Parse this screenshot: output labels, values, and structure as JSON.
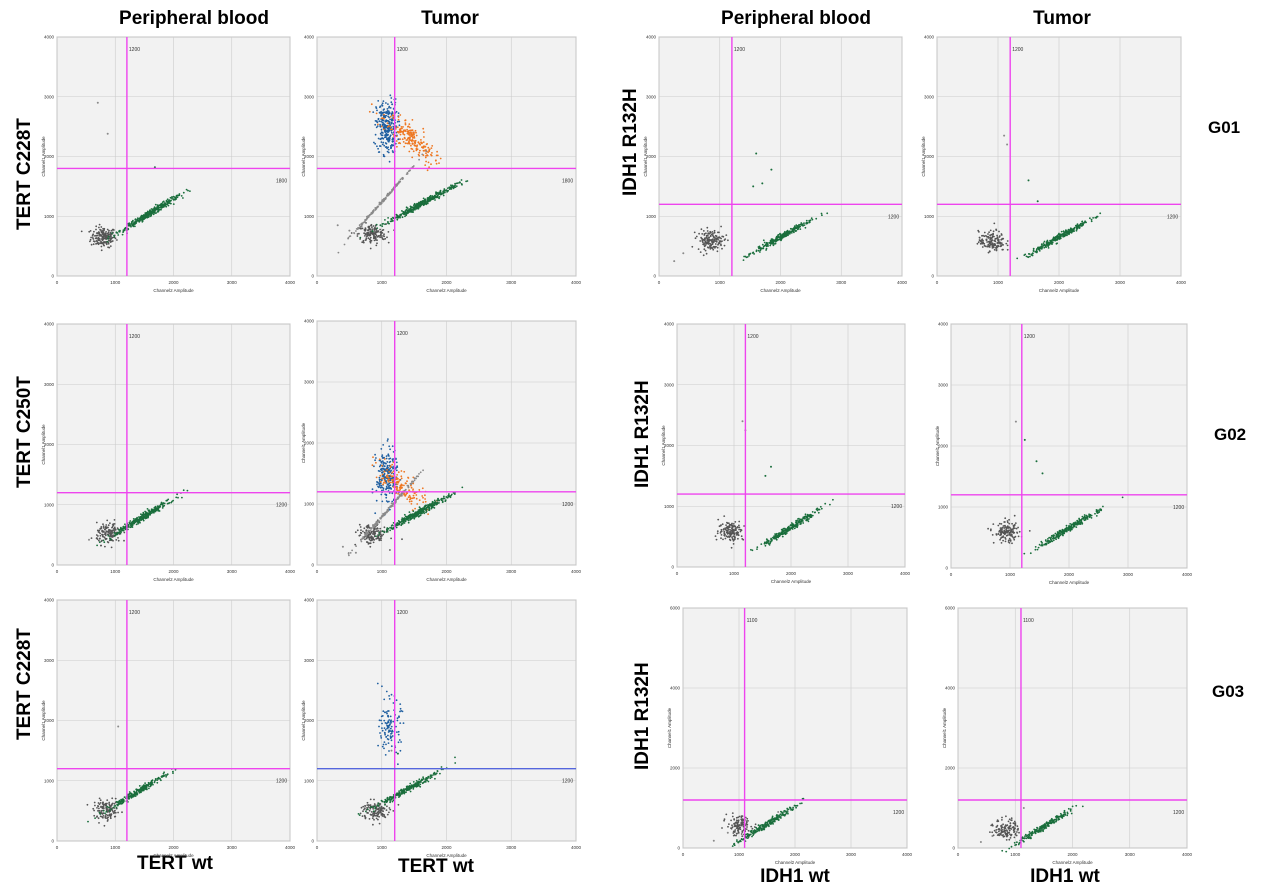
{
  "column_headers": [
    "Peripheral blood",
    "Tumor",
    "Peripheral blood",
    "Tumor"
  ],
  "row_labels_left": [
    "TERT C228T",
    "TERT C250T",
    "TERT C228T"
  ],
  "row_labels_right": [
    "IDH1 R132H",
    "IDH1 R132H",
    "IDH1 R132H"
  ],
  "bottom_labels": [
    "TERT wt",
    "TERT wt",
    "IDH1 wt",
    "IDH1 wt"
  ],
  "group_labels": [
    "G01",
    "G02",
    "G03"
  ],
  "colors": {
    "threshold": "#ee44ee",
    "threshold_alt": "#5566dd",
    "grid": "#cccccc",
    "plot_bg": "#f2f2f2",
    "neg": "#555555",
    "wt": "#1a6e3c",
    "mut": "#1f5fa0",
    "double": "#ee7722",
    "scatter_gray": "#8a8a8a"
  },
  "chart_data": [
    {
      "type": "scatter",
      "group": "G01",
      "sample": "Peripheral blood",
      "assay": "TERT C228T",
      "xlabel": "Channel2 Amplitude",
      "ylabel": "Channel1 Amplitude",
      "xlim": [
        0,
        4000
      ],
      "ylim": [
        0,
        4000
      ],
      "xticks": [
        0,
        1000,
        2000,
        3000,
        4000
      ],
      "yticks": [
        0,
        1000,
        2000,
        3000,
        4000
      ],
      "x_threshold": 1200,
      "y_threshold": 1800,
      "x_threshold_label": "1200",
      "y_threshold_label": "1800",
      "clusters": [
        {
          "name": "negative",
          "color": "neg",
          "center": [
            800,
            650
          ],
          "n": 180
        },
        {
          "name": "wt",
          "color": "wt",
          "center": [
            1600,
            1050
          ],
          "n": 350
        }
      ],
      "outliers": [
        [
          700,
          2900
        ],
        [
          870,
          2380
        ],
        [
          1680,
          1820
        ]
      ],
      "threshold_color": "threshold"
    },
    {
      "type": "scatter",
      "group": "G01",
      "sample": "Tumor",
      "assay": "TERT C228T",
      "xlabel": "Channel2 Amplitude",
      "ylabel": "Channel1 Amplitude",
      "xlim": [
        0,
        4000
      ],
      "ylim": [
        0,
        4000
      ],
      "xticks": [
        0,
        1000,
        2000,
        3000,
        4000
      ],
      "yticks": [
        0,
        1000,
        2000,
        3000,
        4000
      ],
      "x_threshold": 1200,
      "y_threshold": 1800,
      "x_threshold_label": "1200",
      "y_threshold_label": "1800",
      "clusters": [
        {
          "name": "negative",
          "color": "neg",
          "center": [
            850,
            700
          ],
          "n": 160
        },
        {
          "name": "mutant",
          "color": "mut",
          "center": [
            1080,
            2500
          ],
          "n": 280
        },
        {
          "name": "double",
          "color": "double",
          "center": [
            1450,
            2300
          ],
          "n": 220
        },
        {
          "name": "wt",
          "color": "wt",
          "center": [
            1600,
            1200
          ],
          "n": 380
        },
        {
          "name": "rain",
          "color": "scatter_gray",
          "center": [
            1050,
            1300
          ],
          "n": 180
        }
      ],
      "outliers": [
        [
          320,
          850
        ],
        [
          500,
          760
        ]
      ],
      "threshold_color": "threshold"
    },
    {
      "type": "scatter",
      "group": "G01",
      "sample": "Peripheral blood",
      "assay": "IDH1 R132H",
      "xlabel": "Channel2 Amplitude",
      "ylabel": "Channel1 Amplitude",
      "xlim": [
        0,
        4000
      ],
      "ylim": [
        0,
        4000
      ],
      "xticks": [
        0,
        1000,
        2000,
        3000,
        4000
      ],
      "yticks": [
        0,
        1000,
        2000,
        3000,
        4000
      ],
      "x_threshold": 1200,
      "y_threshold": 1200,
      "x_threshold_label": "1200",
      "y_threshold_label": "1200",
      "clusters": [
        {
          "name": "negative",
          "color": "neg",
          "center": [
            850,
            600
          ],
          "n": 160
        },
        {
          "name": "wt",
          "color": "wt",
          "center": [
            2000,
            650
          ],
          "n": 260
        }
      ],
      "outliers": [
        [
          1600,
          2050
        ],
        [
          1700,
          1550
        ],
        [
          1850,
          1780
        ],
        [
          1550,
          1500
        ],
        [
          250,
          250
        ],
        [
          400,
          380
        ]
      ],
      "threshold_color": "threshold"
    },
    {
      "type": "scatter",
      "group": "G01",
      "sample": "Tumor",
      "assay": "IDH1 R132H",
      "xlabel": "Channel2 Amplitude",
      "ylabel": "Channel1 Amplitude",
      "xlim": [
        0,
        4000
      ],
      "ylim": [
        0,
        4000
      ],
      "xticks": [
        0,
        1000,
        2000,
        3000,
        4000
      ],
      "yticks": [
        0,
        1000,
        2000,
        3000,
        4000
      ],
      "x_threshold": 1200,
      "y_threshold": 1200,
      "x_threshold_label": "1200",
      "y_threshold_label": "1200",
      "clusters": [
        {
          "name": "negative",
          "color": "neg",
          "center": [
            900,
            580
          ],
          "n": 150
        },
        {
          "name": "wt",
          "color": "wt",
          "center": [
            2000,
            650
          ],
          "n": 260
        }
      ],
      "outliers": [
        [
          1100,
          2350
        ],
        [
          1150,
          2200
        ],
        [
          1500,
          1600
        ],
        [
          1650,
          1250
        ]
      ],
      "threshold_color": "threshold"
    },
    {
      "type": "scatter",
      "group": "G02",
      "sample": "Peripheral blood",
      "assay": "TERT C250T",
      "xlabel": "Channel2 Amplitude",
      "ylabel": "Channel1 Amplitude",
      "xlim": [
        0,
        4000
      ],
      "ylim": [
        0,
        4000
      ],
      "xticks": [
        0,
        1000,
        2000,
        3000,
        4000
      ],
      "yticks": [
        0,
        1000,
        2000,
        3000,
        4000
      ],
      "x_threshold": 1200,
      "y_threshold": 1200,
      "x_threshold_label": "1200",
      "y_threshold_label": "1200",
      "clusters": [
        {
          "name": "negative",
          "color": "neg",
          "center": [
            900,
            520
          ],
          "n": 140
        },
        {
          "name": "wt",
          "color": "wt",
          "center": [
            1450,
            780
          ],
          "n": 320
        }
      ],
      "outliers": [
        [
          550,
          420
        ]
      ],
      "threshold_color": "threshold"
    },
    {
      "type": "scatter",
      "group": "G02",
      "sample": "Tumor",
      "assay": "TERT C250T",
      "xlabel": "Channel2 Amplitude",
      "ylabel": "Channel1 Amplitude",
      "xlim": [
        0,
        4000
      ],
      "ylim": [
        0,
        4000
      ],
      "xticks": [
        0,
        1000,
        2000,
        3000,
        4000
      ],
      "yticks": [
        0,
        1000,
        2000,
        3000,
        4000
      ],
      "x_threshold": 1200,
      "y_threshold": 1200,
      "x_threshold_label": "1200",
      "y_threshold_label": "1200",
      "clusters": [
        {
          "name": "negative",
          "color": "neg",
          "center": [
            850,
            500
          ],
          "n": 150
        },
        {
          "name": "mutant",
          "color": "mut",
          "center": [
            1080,
            1450
          ],
          "n": 240
        },
        {
          "name": "double",
          "color": "double",
          "center": [
            1330,
            1280
          ],
          "n": 160
        },
        {
          "name": "wt",
          "color": "wt",
          "center": [
            1550,
            850
          ],
          "n": 360
        },
        {
          "name": "rain",
          "color": "scatter_gray",
          "center": [
            1050,
            850
          ],
          "n": 160
        }
      ],
      "outliers": [
        [
          400,
          300
        ],
        [
          600,
          200
        ]
      ],
      "threshold_color": "threshold"
    },
    {
      "type": "scatter",
      "group": "G02",
      "sample": "Peripheral blood",
      "assay": "IDH1 R132H",
      "xlabel": "Channel2 Amplitude",
      "ylabel": "Channel1 Amplitude",
      "xlim": [
        0,
        4000
      ],
      "ylim": [
        0,
        4000
      ],
      "xticks": [
        0,
        1000,
        2000,
        3000,
        4000
      ],
      "yticks": [
        0,
        1000,
        2000,
        3000,
        4000
      ],
      "x_threshold": 1200,
      "y_threshold": 1200,
      "x_threshold_label": "1200",
      "y_threshold_label": "1200",
      "clusters": [
        {
          "name": "negative",
          "color": "neg",
          "center": [
            950,
            600
          ],
          "n": 150
        },
        {
          "name": "wt",
          "color": "wt",
          "center": [
            2000,
            650
          ],
          "n": 260
        }
      ],
      "outliers": [
        [
          1150,
          2400
        ],
        [
          1200,
          2250
        ],
        [
          1650,
          1650
        ],
        [
          1550,
          1500
        ]
      ],
      "threshold_color": "threshold"
    },
    {
      "type": "scatter",
      "group": "G02",
      "sample": "Tumor",
      "assay": "IDH1 R132H",
      "xlabel": "Channel2 Amplitude",
      "ylabel": "Channel1 Amplitude",
      "xlim": [
        0,
        4000
      ],
      "ylim": [
        0,
        4000
      ],
      "xticks": [
        0,
        1000,
        2000,
        3000,
        4000
      ],
      "yticks": [
        0,
        1000,
        2000,
        3000,
        4000
      ],
      "x_threshold": 1200,
      "y_threshold": 1200,
      "x_threshold_label": "1200",
      "y_threshold_label": "1200",
      "clusters": [
        {
          "name": "negative",
          "color": "neg",
          "center": [
            950,
            580
          ],
          "n": 140
        },
        {
          "name": "wt",
          "color": "wt",
          "center": [
            2000,
            650
          ],
          "n": 260
        }
      ],
      "outliers": [
        [
          1100,
          2400
        ],
        [
          1250,
          2100
        ],
        [
          1450,
          1750
        ],
        [
          1550,
          1550
        ]
      ],
      "threshold_color": "threshold"
    },
    {
      "type": "scatter",
      "group": "G03",
      "sample": "Peripheral blood",
      "assay": "TERT C228T",
      "xlabel": "Channel2 Amplitude",
      "ylabel": "Channel1 Amplitude",
      "xlim": [
        0,
        4000
      ],
      "ylim": [
        0,
        4000
      ],
      "xticks": [
        0,
        1000,
        2000,
        3000,
        4000
      ],
      "yticks": [
        0,
        1000,
        2000,
        3000,
        4000
      ],
      "x_threshold": 1200,
      "y_threshold": 1200,
      "x_threshold_label": "1200",
      "y_threshold_label": "1200",
      "clusters": [
        {
          "name": "negative",
          "color": "neg",
          "center": [
            850,
            500
          ],
          "n": 130
        },
        {
          "name": "wt",
          "color": "wt",
          "center": [
            1380,
            820
          ],
          "n": 240
        }
      ],
      "outliers": [
        [
          1050,
          1900
        ]
      ],
      "threshold_color": "threshold"
    },
    {
      "type": "scatter",
      "group": "G03",
      "sample": "Tumor",
      "assay": "TERT C228T",
      "xlabel": "Channel2 Amplitude",
      "ylabel": "Channel1 Amplitude",
      "xlim": [
        0,
        4000
      ],
      "ylim": [
        0,
        4000
      ],
      "xticks": [
        0,
        1000,
        2000,
        3000,
        4000
      ],
      "yticks": [
        0,
        1000,
        2000,
        3000,
        4000
      ],
      "x_threshold": 1200,
      "y_threshold": 1200,
      "x_threshold_label": "1200",
      "y_threshold_label": "1200",
      "clusters": [
        {
          "name": "negative",
          "color": "neg",
          "center": [
            900,
            500
          ],
          "n": 130
        },
        {
          "name": "mutant",
          "color": "mut",
          "center": [
            1130,
            1900
          ],
          "n": 120
        },
        {
          "name": "wt",
          "color": "wt",
          "center": [
            1380,
            850
          ],
          "n": 240
        }
      ],
      "outliers": [
        [
          1150,
          1500
        ],
        [
          1250,
          1450
        ]
      ],
      "threshold_color": "threshold_alt"
    },
    {
      "type": "scatter",
      "group": "G03",
      "sample": "Peripheral blood",
      "assay": "IDH1 R132H",
      "xlabel": "Channel2 Amplitude",
      "ylabel": "Channel1 Amplitude",
      "xlim": [
        0,
        4000
      ],
      "ylim": [
        0,
        6000
      ],
      "xticks": [
        0,
        1000,
        2000,
        3000,
        4000
      ],
      "yticks": [
        0,
        2000,
        4000,
        6000
      ],
      "x_threshold": 1100,
      "y_threshold": 1200,
      "x_threshold_label": "1100",
      "y_threshold_label": "1200",
      "clusters": [
        {
          "name": "negative",
          "color": "neg",
          "center": [
            1000,
            550
          ],
          "n": 130
        },
        {
          "name": "wt",
          "color": "wt",
          "center": [
            1500,
            600
          ],
          "n": 220
        }
      ],
      "outliers": [
        [
          550,
          180
        ],
        [
          800,
          380
        ],
        [
          1700,
          900
        ]
      ],
      "threshold_color": "threshold"
    },
    {
      "type": "scatter",
      "group": "G03",
      "sample": "Tumor",
      "assay": "IDH1 R132H",
      "xlabel": "Channel2 Amplitude",
      "ylabel": "Channel1 Amplitude",
      "xlim": [
        0,
        4000
      ],
      "ylim": [
        0,
        6000
      ],
      "xticks": [
        0,
        1000,
        2000,
        3000,
        4000
      ],
      "yticks": [
        0,
        2000,
        4000,
        6000
      ],
      "x_threshold": 1100,
      "y_threshold": 1200,
      "x_threshold_label": "1100",
      "y_threshold_label": "1200",
      "clusters": [
        {
          "name": "negative",
          "color": "neg",
          "center": [
            850,
            480
          ],
          "n": 130
        },
        {
          "name": "wt",
          "color": "wt",
          "center": [
            1500,
            530
          ],
          "n": 220
        }
      ],
      "outliers": [
        [
          400,
          150
        ],
        [
          600,
          300
        ],
        [
          1150,
          1000
        ]
      ],
      "threshold_color": "threshold"
    }
  ]
}
